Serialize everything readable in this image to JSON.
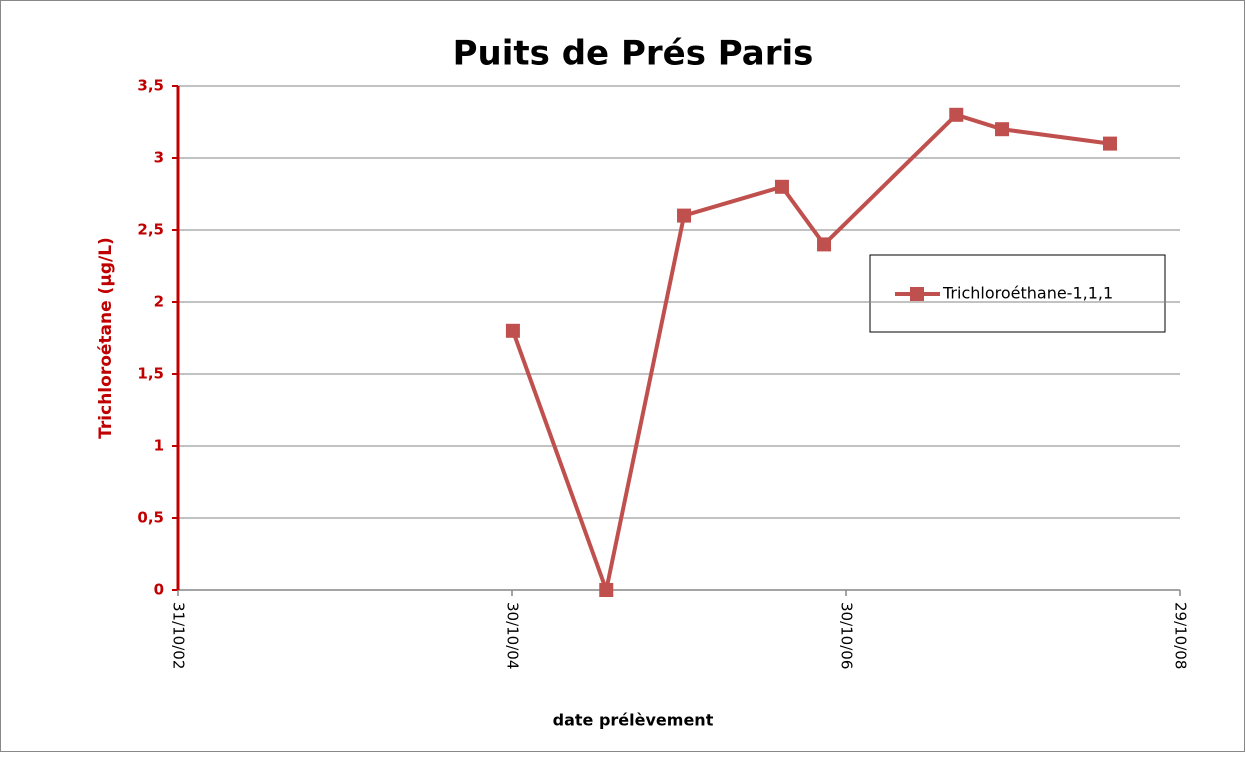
{
  "chart_data": {
    "type": "line",
    "title": "Puits de Prés Paris",
    "x_label": "date prélèvement",
    "y_label": "Trichloroétane (µg/L)",
    "x": [
      "2004-11-01",
      "2005-05-24",
      "2005-11-10",
      "2006-06-12",
      "2006-09-12",
      "2007-06-28",
      "2007-10-06",
      "2008-05-29"
    ],
    "series": [
      {
        "name": "Trichloroéthane-1,1,1",
        "color": "#c0504d",
        "values": [
          1.8,
          0,
          2.6,
          2.8,
          2.4,
          3.3,
          3.2,
          3.1
        ]
      }
    ],
    "xlim": [
      "2002-10-31",
      "2008-10-29"
    ],
    "xticks": [
      {
        "value": "2002-10-31",
        "label": "31/10/02"
      },
      {
        "value": "2004-10-30",
        "label": "30/10/04"
      },
      {
        "value": "2006-10-30",
        "label": "30/10/06"
      },
      {
        "value": "2008-10-29",
        "label": "29/10/08"
      }
    ],
    "ylim": [
      0,
      3.5
    ],
    "yticks": [
      0,
      {
        "value": 0.5,
        "label": "0,5"
      },
      1,
      {
        "value": 1.5,
        "label": "1,5"
      },
      2,
      {
        "value": 2.5,
        "label": "2,5"
      },
      3,
      {
        "value": 3.5,
        "label": "3,5"
      }
    ],
    "grid": true,
    "legend": "right"
  }
}
